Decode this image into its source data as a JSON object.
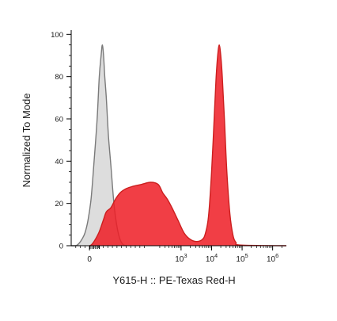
{
  "chart_data": {
    "type": "area",
    "xlabel": "Y615-H :: PE-Texas Red-H",
    "ylabel": "Normalized To Mode",
    "xscale": "biexponential",
    "xlim": [
      -0.6,
      6.45
    ],
    "ylim": [
      0,
      102
    ],
    "grid": false,
    "legend": "none",
    "x_ticks": [
      {
        "pos": 0,
        "base": "0",
        "exp": ""
      },
      {
        "pos": 3,
        "base": "10",
        "exp": "3"
      },
      {
        "pos": 4,
        "base": "10",
        "exp": "4"
      },
      {
        "pos": 5,
        "base": "10",
        "exp": "5"
      },
      {
        "pos": 6,
        "base": "10",
        "exp": "6"
      }
    ],
    "y_ticks": [
      0,
      20,
      40,
      60,
      80,
      100
    ],
    "series": [
      {
        "fill": "#d9d9d9",
        "stroke": "#7a7a7a",
        "fill_opacity": 0.9,
        "points": [
          [
            -0.6,
            0
          ],
          [
            -0.45,
            0
          ],
          [
            -0.35,
            1
          ],
          [
            -0.25,
            3
          ],
          [
            -0.15,
            6
          ],
          [
            -0.05,
            12
          ],
          [
            0.05,
            22
          ],
          [
            0.15,
            40
          ],
          [
            0.25,
            60
          ],
          [
            0.32,
            80
          ],
          [
            0.38,
            90
          ],
          [
            0.42,
            95
          ],
          [
            0.46,
            90
          ],
          [
            0.5,
            80
          ],
          [
            0.55,
            70
          ],
          [
            0.62,
            52
          ],
          [
            0.7,
            38
          ],
          [
            0.8,
            20
          ],
          [
            0.9,
            9
          ],
          [
            1.0,
            3
          ],
          [
            1.1,
            0.5
          ],
          [
            1.2,
            0
          ]
        ]
      },
      {
        "fill": "#ee1c24",
        "stroke": "#cc1f1f",
        "fill_opacity": 0.85,
        "points": [
          [
            0.0,
            0
          ],
          [
            0.1,
            1
          ],
          [
            0.3,
            6
          ],
          [
            0.45,
            12
          ],
          [
            0.55,
            16
          ],
          [
            0.7,
            18
          ],
          [
            0.85,
            22
          ],
          [
            1.0,
            25
          ],
          [
            1.2,
            27
          ],
          [
            1.4,
            28
          ],
          [
            1.7,
            29
          ],
          [
            2.0,
            30
          ],
          [
            2.25,
            29
          ],
          [
            2.4,
            25
          ],
          [
            2.55,
            22
          ],
          [
            2.7,
            18
          ],
          [
            2.9,
            12
          ],
          [
            3.1,
            6
          ],
          [
            3.3,
            3
          ],
          [
            3.5,
            2
          ],
          [
            3.7,
            3
          ],
          [
            3.8,
            6
          ],
          [
            3.9,
            14
          ],
          [
            4.0,
            35
          ],
          [
            4.1,
            65
          ],
          [
            4.15,
            80
          ],
          [
            4.2,
            90
          ],
          [
            4.25,
            95
          ],
          [
            4.3,
            90
          ],
          [
            4.35,
            80
          ],
          [
            4.42,
            60
          ],
          [
            4.5,
            35
          ],
          [
            4.6,
            15
          ],
          [
            4.7,
            5
          ],
          [
            4.8,
            1.5
          ],
          [
            4.95,
            0.3
          ],
          [
            6.45,
            0
          ]
        ]
      }
    ]
  }
}
